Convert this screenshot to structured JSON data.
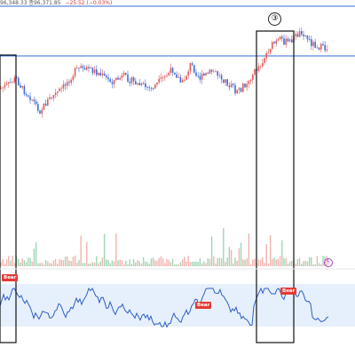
{
  "ohlc_readout": {
    "text": "96,348.33  종96,371.85",
    "change": "−25.52 (−0.03%)"
  },
  "annotations": {
    "circle_3": "③",
    "bear_labels": [
      "Bear",
      "Bear",
      "Bear"
    ],
    "bolt_icon": "lightning-icon"
  },
  "colors": {
    "up": "#e05a5a",
    "down": "#3d6fd6",
    "indicator_line": "#2f5ec4",
    "indicator_band": "#dbe9fb",
    "guide_line": "#2f6bd6",
    "bear": "#e53935",
    "volume_up": "#f2b3ad",
    "volume_down": "#9fd6b4"
  }
}
